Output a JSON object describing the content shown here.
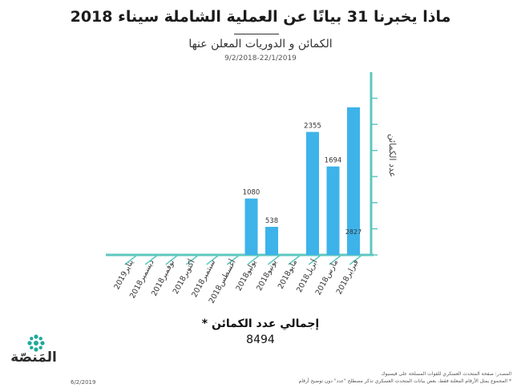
{
  "header": {
    "title": "ماذا يخبرنا 31 بيانًا عن العملية الشاملة سيناء 2018",
    "subtitle": "الكمائن و الدوريات المعلن عنها",
    "date_range": "9/2/2018-22/1/2019"
  },
  "summary": {
    "total_label": "إجمالي عدد الكمائن *",
    "total_value": "8494"
  },
  "brand": {
    "name": "المَنصّة",
    "color": "#1fa99a"
  },
  "footer": {
    "date": "6/2/2019",
    "source_line1": "المصدر: صفحة المتحدث العسكري للقوات المسلحة على فيسبوك",
    "source_line2": "* المجموع يمثل الأرقام المعلنة فقط، بعض بيانات المتحدث العسكري تذكر مصطلح \"عدد\" دون توضيح أرقام"
  },
  "colors": {
    "bar": "#3db3ea",
    "axis": "#5ec7c0",
    "accent": "#1fa99a"
  },
  "chart_data": {
    "type": "bar",
    "title": "",
    "xlabel": "",
    "ylabel": "عدد الكمائن",
    "categories": [
      "فبراير2018",
      "مارس2018",
      "أبريل2018",
      "مايو2018",
      "يونيو2018",
      "يوليو2018",
      "أغسطس2018",
      "سبتمبر2018",
      "أكتوبر2018",
      "نوفمبر2018",
      "ديسمبر2018",
      "يناير2019"
    ],
    "values": [
      2827,
      1694,
      2355,
      0,
      538,
      1080,
      0,
      0,
      0,
      0,
      0,
      0
    ],
    "labels": [
      "2827",
      "1694",
      "2355",
      "",
      "538",
      "1080",
      "",
      "",
      "",
      "",
      "",
      ""
    ],
    "ylim": [
      0,
      3500
    ],
    "y_ticks": [
      0,
      500,
      1000,
      1500,
      2000,
      2500,
      3000
    ],
    "grid": false
  }
}
